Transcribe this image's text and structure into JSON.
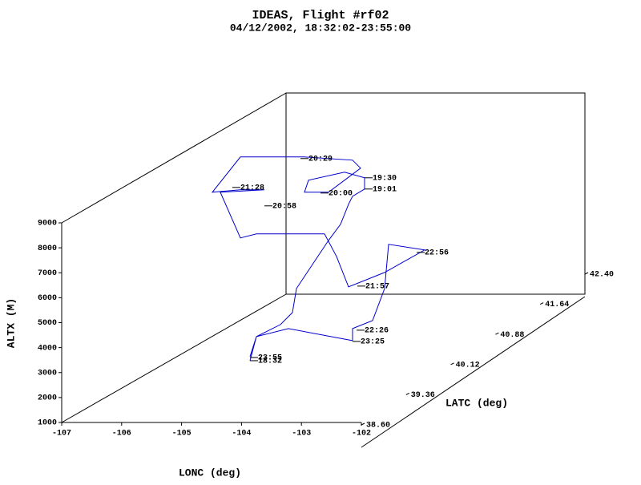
{
  "chart_data": {
    "type": "line3d",
    "title": "IDEAS, Flight #rf02",
    "subtitle": "04/12/2002, 18:32:02-23:55:00",
    "xlabel": "LONC (deg)",
    "ylabel": "LATC (deg)",
    "zlabel": "ALTX (M)",
    "xlim": [
      -107,
      -102
    ],
    "xticks": [
      -107,
      -106,
      -105,
      -104,
      -103,
      -102
    ],
    "ylim": [
      38.6,
      42.4
    ],
    "yticks": [
      {
        "value": 38.6,
        "label": "38.60"
      },
      39.36,
      40.12,
      40.88,
      41.64,
      {
        "value": 42.4,
        "label": "42.40"
      }
    ],
    "zlim": [
      1000,
      9000
    ],
    "zticks": [
      1000,
      2000,
      3000,
      4000,
      5000,
      6000,
      7000,
      8000,
      9000
    ],
    "series": [
      {
        "color": "#0000cc",
        "x": [
          -105.233,
          -105.126,
          -104.725,
          -104.524,
          -104.457,
          -104.19,
          -103.922,
          -103.722,
          -103.588,
          -103.521,
          -103.321,
          -103.321,
          -103.655,
          -104.257,
          -104.324,
          -103.922,
          -103.655,
          -103.388,
          -103.521,
          -104.324,
          -105.393,
          -105.861,
          -105.393,
          -104.992,
          -105.727,
          -105.393,
          -105.126,
          -103.989,
          -103.789,
          -103.588,
          -102.987,
          -102.318,
          -102.92,
          -102.987,
          -103.187,
          -103.521,
          -103.521,
          -104.591,
          -105.126,
          -105.233
        ],
        "y": [
          40,
          40,
          40,
          40,
          40,
          40,
          40,
          40,
          40,
          40,
          40,
          40,
          40,
          40,
          40,
          40,
          40,
          40,
          40,
          40,
          40,
          40,
          40,
          40,
          40,
          40,
          40,
          40,
          40,
          40,
          40,
          40,
          40,
          40,
          40,
          40,
          40,
          40,
          40,
          40
        ],
        "z": [
          1582,
          2546,
          3029,
          3511,
          4475,
          5440,
          6404,
          7047,
          7851,
          8173,
          8462,
          8912,
          9137,
          8816,
          8333,
          8333,
          8816,
          9298,
          9619,
          9748,
          9748,
          8333,
          8430,
          8430,
          8333,
          6501,
          6662,
          6662,
          5761,
          4540,
          5118,
          6019,
          6244,
          4475,
          3189,
          2868,
          2386,
          2868,
          2546,
          1743
        ]
      }
    ],
    "annotations": [
      {
        "text": "18:32",
        "x": -105.233,
        "y": 40,
        "z": 1582
      },
      {
        "text": "19:01",
        "x": -103.321,
        "y": 40,
        "z": 8462
      },
      {
        "text": "19:30",
        "x": -103.321,
        "y": 40,
        "z": 8912
      },
      {
        "text": "20:00",
        "x": -104.056,
        "y": 40,
        "z": 8301
      },
      {
        "text": "20:29",
        "x": -104.39,
        "y": 40,
        "z": 9684
      },
      {
        "text": "20:58",
        "x": -104.992,
        "y": 40,
        "z": 7787
      },
      {
        "text": "21:28",
        "x": -105.527,
        "y": 40,
        "z": 8526
      },
      {
        "text": "21:57",
        "x": -103.441,
        "y": 40,
        "z": 4572
      },
      {
        "text": "22:26",
        "x": -103.455,
        "y": 40,
        "z": 2804
      },
      {
        "text": "22:56",
        "x": -102.452,
        "y": 40,
        "z": 5922
      },
      {
        "text": "23:25",
        "x": -103.521,
        "y": 40,
        "z": 2354
      },
      {
        "text": "23:55",
        "x": -105.233,
        "y": 40,
        "z": 1711
      }
    ]
  }
}
